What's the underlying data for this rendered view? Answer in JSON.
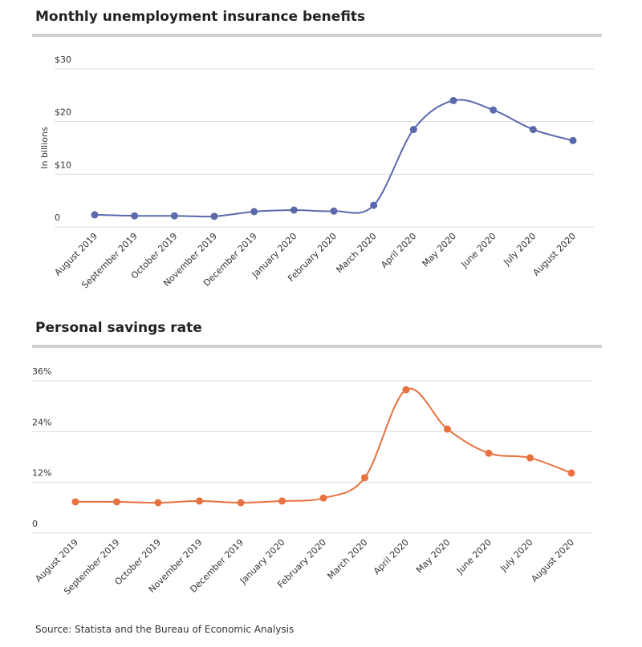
{
  "chart_data": [
    {
      "type": "line",
      "title": "Monthly unemployment insurance benefits",
      "y_label": "In billions",
      "categories": [
        "August 2019",
        "September 2019",
        "October 2019",
        "November 2019",
        "December 2019",
        "January 2020",
        "February 2020",
        "March 2020",
        "April 2020",
        "May 2020",
        "June 2020",
        "July 2020",
        "August 2020"
      ],
      "series": [
        {
          "color": "#5a69ad",
          "values": [
            2.3,
            2.1,
            2.1,
            2.0,
            2.9,
            3.2,
            3.0,
            4.1,
            18.5,
            24.0,
            22.2,
            18.5,
            16.4
          ]
        }
      ],
      "ylim": [
        0,
        30
      ],
      "yticks": [
        0,
        {
          "value": 10,
          "label": "$10"
        },
        {
          "value": 20,
          "label": "$20"
        },
        {
          "value": 30,
          "label": "$30"
        }
      ],
      "grid": true
    },
    {
      "type": "line",
      "title": "Personal savings rate",
      "categories": [
        "August 2019",
        "September 2019",
        "October 2019",
        "November 2019",
        "December 2019",
        "January 2020",
        "February 2020",
        "March 2020",
        "April 2020",
        "May 2020",
        "June 2020",
        "July 2020",
        "August 2020"
      ],
      "series": [
        {
          "color": "#e8723f",
          "values": [
            7.4,
            7.4,
            7.2,
            7.6,
            7.2,
            7.6,
            8.3,
            13.1,
            33.9,
            24.6,
            18.9,
            17.8,
            14.2
          ]
        }
      ],
      "ylim": [
        0,
        36
      ],
      "yticks": [
        0,
        {
          "value": 12,
          "label": "12%"
        },
        {
          "value": 24,
          "label": "24%"
        },
        {
          "value": 36,
          "label": "36%"
        }
      ],
      "grid": true
    }
  ],
  "source": "Source: Statista and the Bureau of Economic Analysis"
}
